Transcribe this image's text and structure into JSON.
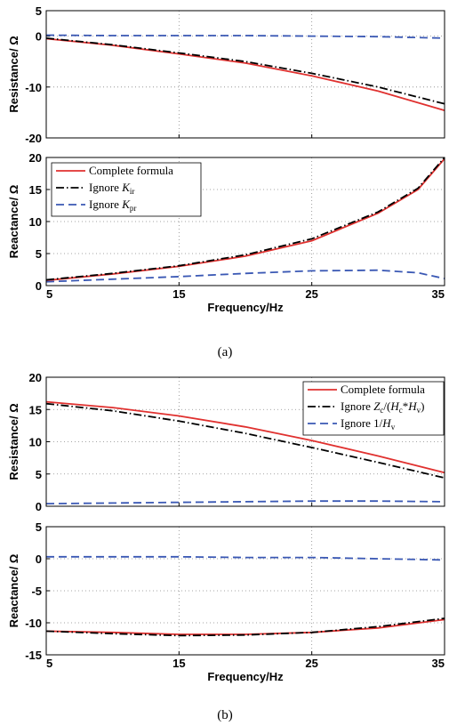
{
  "figure": {
    "panel_labels": [
      "(a)",
      "(b)"
    ]
  },
  "colors": {
    "complete": "#e0312f",
    "ignore1": "#000000",
    "ignore2": "#3a58b4"
  },
  "legend_text": {
    "a": [
      {
        "text": "Complete formula"
      },
      {
        "text": "Ignore ",
        "sym": "K",
        "sub": "ir"
      },
      {
        "text": "Ignore ",
        "sym": "K",
        "sub": "pr"
      }
    ],
    "b": [
      {
        "text": "Complete formula"
      },
      {
        "parts": [
          [
            "Ignore ",
            ""
          ],
          [
            "Z",
            ""
          ],
          [
            "c",
            "sub"
          ],
          [
            "/(",
            ""
          ],
          [
            "H",
            ""
          ],
          [
            "c",
            "sub"
          ],
          [
            "*",
            ""
          ],
          [
            "H",
            ""
          ],
          [
            "v",
            "sub"
          ],
          [
            ")",
            ""
          ]
        ]
      },
      {
        "parts": [
          [
            "Ignore 1/",
            ""
          ],
          [
            "H",
            ""
          ],
          [
            "v",
            "sub"
          ]
        ]
      }
    ]
  },
  "chart_data": [
    {
      "type": "line",
      "title": "",
      "xlabel": "",
      "ylabel": "Resistance/ Ω",
      "xlim": [
        5,
        35
      ],
      "ylim": [
        -20,
        5
      ],
      "yticks": [
        5,
        0,
        -10,
        -20
      ],
      "xticks": [
        5,
        15,
        25,
        35
      ],
      "show_xtick_labels": false,
      "grid": true,
      "series": [
        {
          "key": "complete",
          "style": "solid",
          "x": [
            5,
            10,
            15,
            20,
            25,
            30,
            35
          ],
          "y": [
            -0.5,
            -1.8,
            -3.5,
            -5.3,
            -7.8,
            -10.8,
            -14.6
          ]
        },
        {
          "key": "ignore1",
          "style": "dashdot",
          "x": [
            5,
            10,
            15,
            20,
            25,
            30,
            35
          ],
          "y": [
            -0.4,
            -1.7,
            -3.3,
            -5.0,
            -7.3,
            -10.0,
            -13.3
          ]
        },
        {
          "key": "ignore2",
          "style": "dashed",
          "x": [
            5,
            10,
            15,
            20,
            25,
            30,
            35
          ],
          "y": [
            0.2,
            0.1,
            0.1,
            0.1,
            0.0,
            -0.1,
            -0.4
          ]
        }
      ]
    },
    {
      "type": "line",
      "title": "",
      "xlabel": "Frequency/Hz",
      "ylabel": "Reactance/ Ω",
      "xlim": [
        5,
        35
      ],
      "ylim": [
        0,
        20
      ],
      "yticks": [
        20,
        15,
        10,
        5,
        0
      ],
      "xticks": [
        5,
        15,
        25,
        35
      ],
      "show_xtick_labels": true,
      "grid": true,
      "legend": "top-left",
      "series": [
        {
          "key": "complete",
          "style": "solid",
          "x": [
            5,
            10,
            15,
            20,
            25,
            30,
            33,
            35
          ],
          "y": [
            0.8,
            1.8,
            3.0,
            4.6,
            7.0,
            11.3,
            15.0,
            19.8
          ]
        },
        {
          "key": "ignore1",
          "style": "dashdot",
          "x": [
            5,
            10,
            15,
            20,
            25,
            30,
            33,
            35
          ],
          "y": [
            0.9,
            1.9,
            3.1,
            4.8,
            7.3,
            11.5,
            15.2,
            20.0
          ]
        },
        {
          "key": "ignore2",
          "style": "dashed",
          "x": [
            5,
            10,
            15,
            20,
            25,
            30,
            33,
            35
          ],
          "y": [
            0.6,
            1.0,
            1.4,
            1.9,
            2.3,
            2.4,
            2.0,
            1.1
          ]
        }
      ]
    },
    {
      "type": "line",
      "title": "",
      "xlabel": "",
      "ylabel": "Resistance/ Ω",
      "xlim": [
        5,
        35
      ],
      "ylim": [
        0,
        20
      ],
      "yticks": [
        20,
        15,
        10,
        5,
        0
      ],
      "xticks": [
        5,
        15,
        25,
        35
      ],
      "show_xtick_labels": false,
      "grid": true,
      "legend": "top-right",
      "series": [
        {
          "key": "complete",
          "style": "solid",
          "x": [
            5,
            10,
            15,
            20,
            25,
            30,
            35
          ],
          "y": [
            16.2,
            15.3,
            14.0,
            12.3,
            10.2,
            7.8,
            5.2
          ]
        },
        {
          "key": "ignore1",
          "style": "dashdot",
          "x": [
            5,
            10,
            15,
            20,
            25,
            30,
            35
          ],
          "y": [
            15.9,
            14.8,
            13.2,
            11.3,
            9.1,
            6.8,
            4.4
          ]
        },
        {
          "key": "ignore2",
          "style": "dashed",
          "x": [
            5,
            10,
            15,
            20,
            25,
            30,
            35
          ],
          "y": [
            0.4,
            0.5,
            0.6,
            0.7,
            0.8,
            0.8,
            0.7
          ]
        }
      ]
    },
    {
      "type": "line",
      "title": "",
      "xlabel": "Frequency/Hz",
      "ylabel": "Reactance/ Ω",
      "xlim": [
        5,
        35
      ],
      "ylim": [
        -15,
        5
      ],
      "yticks": [
        5,
        0,
        -5,
        -10,
        -15
      ],
      "xticks": [
        5,
        15,
        25,
        35
      ],
      "show_xtick_labels": true,
      "grid": true,
      "series": [
        {
          "key": "complete",
          "style": "solid",
          "x": [
            5,
            10,
            15,
            20,
            25,
            30,
            35
          ],
          "y": [
            -11.3,
            -11.5,
            -11.8,
            -11.8,
            -11.5,
            -10.8,
            -9.5
          ]
        },
        {
          "key": "ignore1",
          "style": "dashdot",
          "x": [
            5,
            10,
            15,
            20,
            25,
            30,
            35
          ],
          "y": [
            -11.3,
            -11.7,
            -12.0,
            -11.9,
            -11.5,
            -10.6,
            -9.3
          ]
        },
        {
          "key": "ignore2",
          "style": "dashed",
          "x": [
            5,
            10,
            15,
            20,
            25,
            30,
            35
          ],
          "y": [
            0.3,
            0.3,
            0.3,
            0.2,
            0.2,
            0.0,
            -0.2
          ]
        }
      ]
    }
  ]
}
